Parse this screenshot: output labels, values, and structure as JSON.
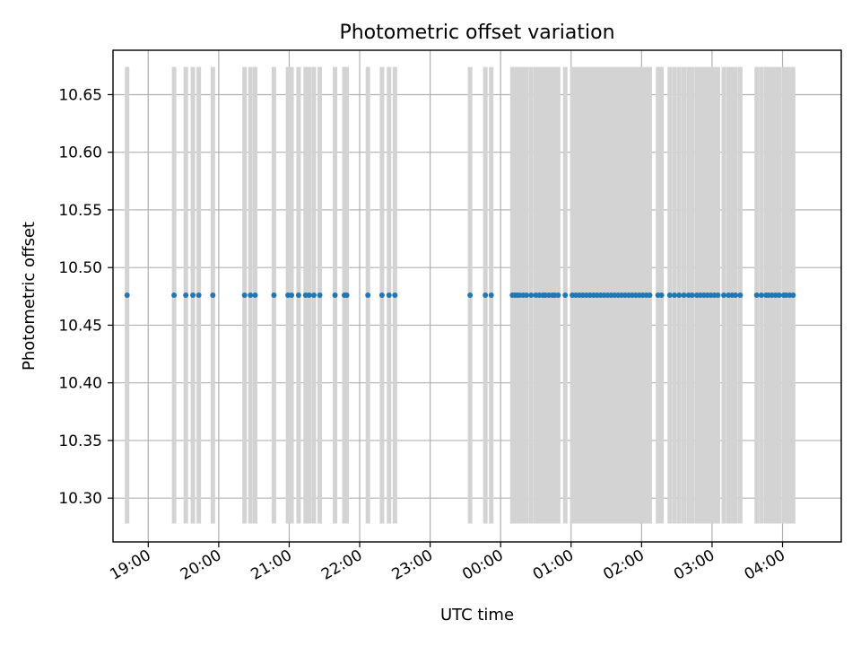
{
  "chart_data": {
    "type": "scatter",
    "title": "Photometric offset variation",
    "xlabel": "UTC time",
    "ylabel": "Photometric offset",
    "x_unit": "UTC time of day (HH:MM)",
    "xlim": [
      "18:30",
      "04:50"
    ],
    "ylim": [
      10.262,
      10.6885
    ],
    "grid": true,
    "x_ticks": [
      "19:00",
      "20:00",
      "21:00",
      "22:00",
      "23:00",
      "00:00",
      "01:00",
      "02:00",
      "03:00",
      "04:00"
    ],
    "y_ticks": [
      "10.30",
      "10.35",
      "10.40",
      "10.45",
      "10.50",
      "10.55",
      "10.60",
      "10.65"
    ],
    "y_tick_values": [
      10.3,
      10.35,
      10.4,
      10.45,
      10.5,
      10.55,
      10.6,
      10.65
    ],
    "colors": {
      "points": "#1f77b4",
      "error_bars": "#d3d3d3",
      "grid": "#b0b0b0"
    },
    "error_band": [
      10.278,
      10.674
    ],
    "series": [
      {
        "y": 10.476,
        "x": [
          "18:42",
          "19:22",
          "19:32",
          "19:38",
          "19:43",
          "19:55",
          "20:22",
          "20:27",
          "20:31",
          "20:47",
          "20:59",
          "21:02",
          "21:08",
          "21:14",
          "21:17",
          "21:21",
          "21:26",
          "21:39",
          "21:47",
          "21:49",
          "22:07",
          "22:19",
          "22:25",
          "22:30",
          "23:34",
          "23:47",
          "23:52",
          "00:10",
          "00:12",
          "00:14",
          "00:16",
          "00:19",
          "00:22",
          "00:26",
          "00:30",
          "00:33",
          "00:36",
          "00:38",
          "00:41",
          "00:44",
          "00:46",
          "00:49",
          "00:55",
          "01:01",
          "01:04",
          "01:07",
          "01:10",
          "01:13",
          "01:16",
          "01:19",
          "01:22",
          "01:25",
          "01:28",
          "01:31",
          "01:34",
          "01:37",
          "01:40",
          "01:43",
          "01:46",
          "01:49",
          "01:52",
          "01:55",
          "01:58",
          "02:01",
          "02:04",
          "02:07",
          "02:14",
          "02:17",
          "02:24",
          "02:28",
          "02:32",
          "02:36",
          "02:40",
          "02:43",
          "02:47",
          "02:50",
          "02:53",
          "02:56",
          "02:59",
          "03:02",
          "03:05",
          "03:10",
          "03:14",
          "03:17",
          "03:20",
          "03:24",
          "03:38",
          "03:42",
          "03:46",
          "03:48",
          "03:51",
          "03:54",
          "03:57",
          "04:01",
          "04:03",
          "04:06",
          "04:09"
        ]
      }
    ]
  }
}
